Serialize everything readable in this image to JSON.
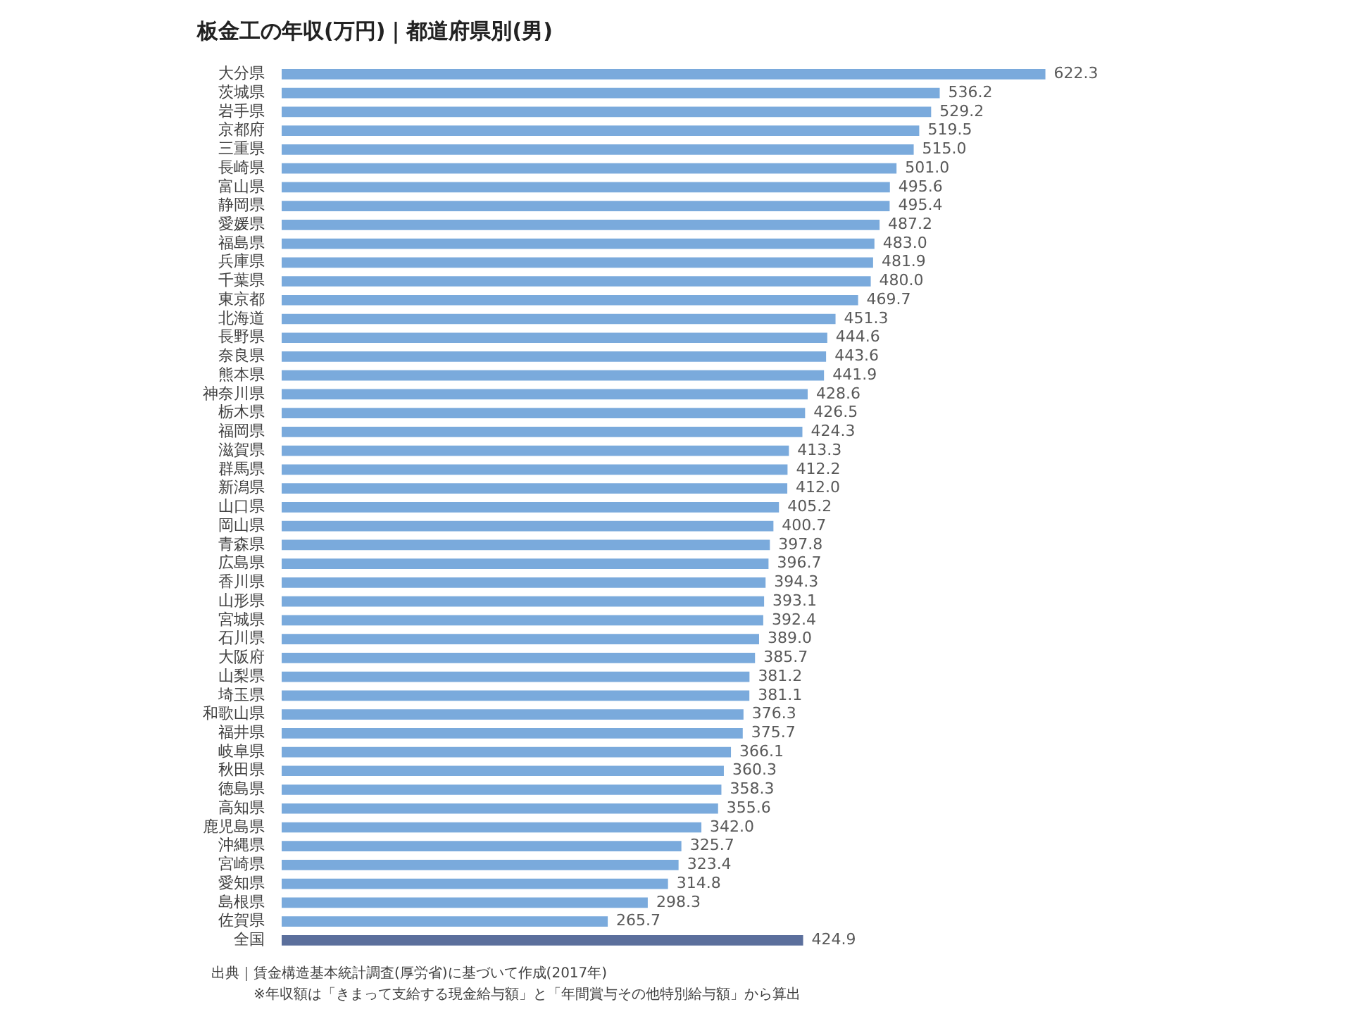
{
  "chart_data": {
    "type": "bar",
    "orientation": "horizontal",
    "title": "板金工の年収(万円)｜都道府県別(男)",
    "categories": [
      "大分県",
      "茨城県",
      "岩手県",
      "京都府",
      "三重県",
      "長崎県",
      "富山県",
      "静岡県",
      "愛媛県",
      "福島県",
      "兵庫県",
      "千葉県",
      "東京都",
      "北海道",
      "長野県",
      "奈良県",
      "熊本県",
      "神奈川県",
      "栃木県",
      "福岡県",
      "滋賀県",
      "群馬県",
      "新潟県",
      "山口県",
      "岡山県",
      "青森県",
      "広島県",
      "香川県",
      "山形県",
      "宮城県",
      "石川県",
      "大阪府",
      "山梨県",
      "埼玉県",
      "和歌山県",
      "福井県",
      "岐阜県",
      "秋田県",
      "徳島県",
      "高知県",
      "鹿児島県",
      "沖縄県",
      "宮崎県",
      "愛知県",
      "島根県",
      "佐賀県",
      "全国"
    ],
    "values": [
      622.3,
      536.2,
      529.2,
      519.5,
      515.0,
      501.0,
      495.6,
      495.4,
      487.2,
      483.0,
      481.9,
      480.0,
      469.7,
      451.3,
      444.6,
      443.6,
      441.9,
      428.6,
      426.5,
      424.3,
      413.3,
      412.2,
      412.0,
      405.2,
      400.7,
      397.8,
      396.7,
      394.3,
      393.1,
      392.4,
      389.0,
      385.7,
      381.2,
      381.1,
      376.3,
      375.7,
      366.1,
      360.3,
      358.3,
      355.6,
      342.0,
      325.7,
      323.4,
      314.8,
      298.3,
      265.7,
      424.9
    ],
    "value_labels": [
      "622.3",
      "536.2",
      "529.2",
      "519.5",
      "515.0",
      "501.0",
      "495.6",
      "495.4",
      "487.2",
      "483.0",
      "481.9",
      "480.0",
      "469.7",
      "451.3",
      "444.6",
      "443.6",
      "441.9",
      "428.6",
      "426.5",
      "424.3",
      "413.3",
      "412.2",
      "412.0",
      "405.2",
      "400.7",
      "397.8",
      "396.7",
      "394.3",
      "393.1",
      "392.4",
      "389.0",
      "385.7",
      "381.2",
      "381.1",
      "376.3",
      "375.7",
      "366.1",
      "360.3",
      "358.3",
      "355.6",
      "342.0",
      "325.7",
      "323.4",
      "314.8",
      "298.3",
      "265.7",
      "424.9"
    ],
    "colors": [
      "#7aaadc",
      "#7aaadc",
      "#7aaadc",
      "#7aaadc",
      "#7aaadc",
      "#7aaadc",
      "#7aaadc",
      "#7aaadc",
      "#7aaadc",
      "#7aaadc",
      "#7aaadc",
      "#7aaadc",
      "#7aaadc",
      "#7aaadc",
      "#7aaadc",
      "#7aaadc",
      "#7aaadc",
      "#7aaadc",
      "#7aaadc",
      "#7aaadc",
      "#7aaadc",
      "#7aaadc",
      "#7aaadc",
      "#7aaadc",
      "#7aaadc",
      "#7aaadc",
      "#7aaadc",
      "#7aaadc",
      "#7aaadc",
      "#7aaadc",
      "#7aaadc",
      "#7aaadc",
      "#7aaadc",
      "#7aaadc",
      "#7aaadc",
      "#7aaadc",
      "#7aaadc",
      "#7aaadc",
      "#7aaadc",
      "#7aaadc",
      "#7aaadc",
      "#7aaadc",
      "#7aaadc",
      "#7aaadc",
      "#7aaadc",
      "#7aaadc",
      "#5b6f9c"
    ],
    "legend": false,
    "annotations": [
      "出典｜賃金構造基本統計調査(厚労省)に基づいて作成(2017年)",
      "※年収額は「きまって支給する現金給与額」と「年間賞与その他特別給与額」から算出"
    ]
  }
}
